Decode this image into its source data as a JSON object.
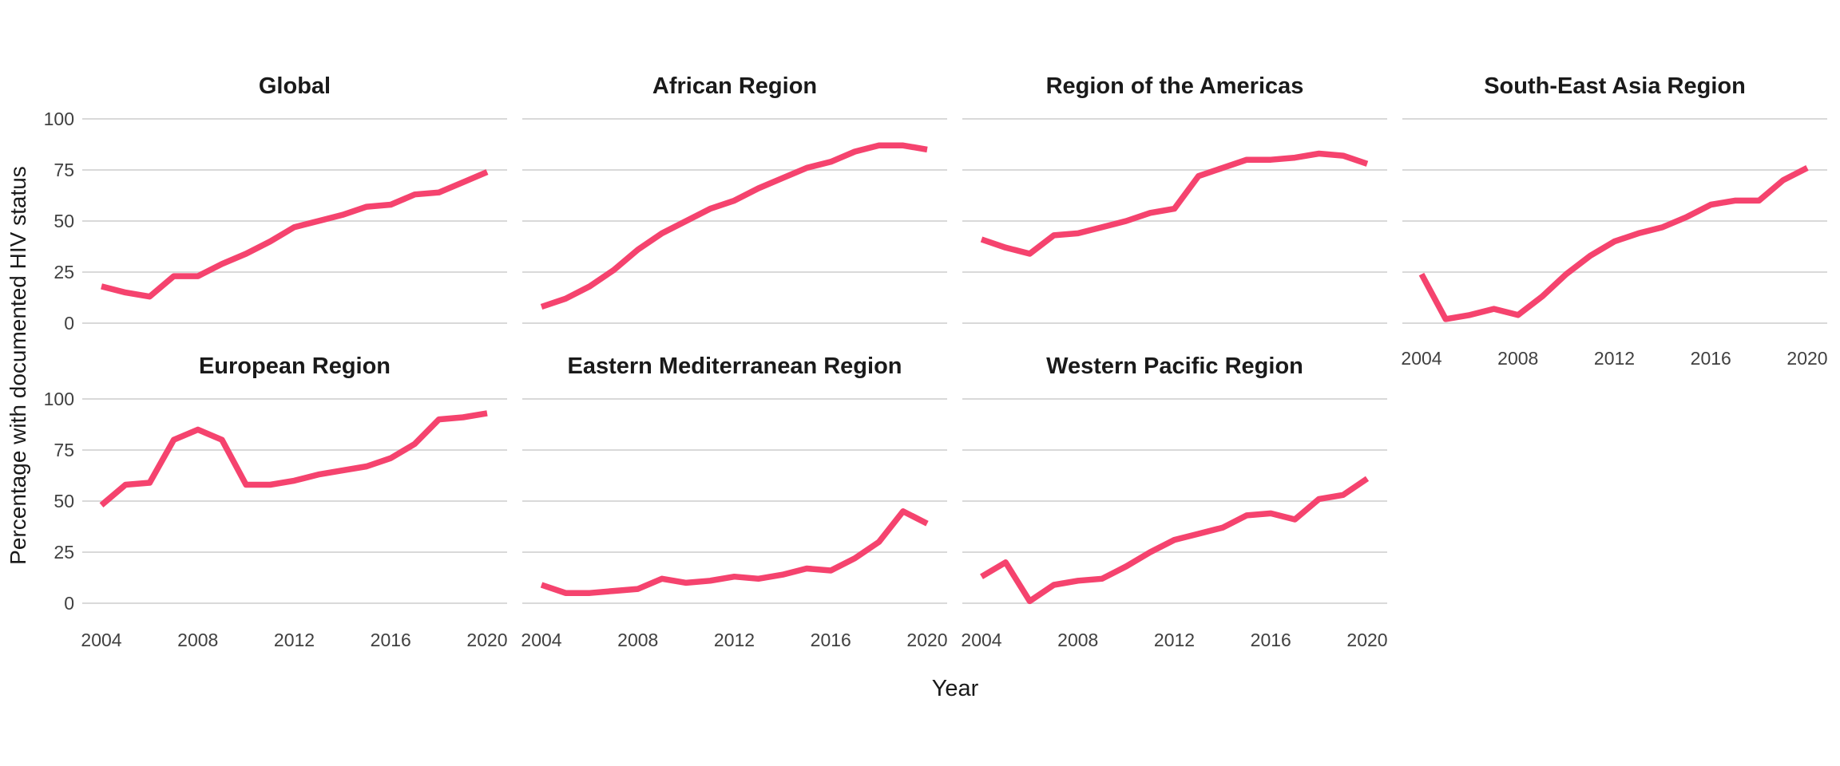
{
  "chart_data": {
    "type": "line",
    "title": "",
    "xlabel": "Year",
    "ylabel": "Percentage with documented HIV status",
    "x": [
      2004,
      2005,
      2006,
      2007,
      2008,
      2009,
      2010,
      2011,
      2012,
      2013,
      2014,
      2015,
      2016,
      2017,
      2018,
      2019,
      2020
    ],
    "xticks": [
      2004,
      2008,
      2012,
      2016,
      2020
    ],
    "yticks": [
      0,
      25,
      50,
      75,
      100
    ],
    "ylim": [
      0,
      100
    ],
    "grid": "horizontal-only",
    "legend": "none",
    "line_color": "#F5436E",
    "gridline_color": "#D9D9D9",
    "title_color": "#1a1a1a",
    "tick_color": "#404040",
    "series": [
      {
        "name": "Global",
        "values": [
          18,
          15,
          13,
          23,
          23,
          29,
          34,
          40,
          47,
          50,
          53,
          57,
          58,
          63,
          64,
          69,
          74
        ]
      },
      {
        "name": "African Region",
        "values": [
          8,
          12,
          18,
          26,
          36,
          44,
          50,
          56,
          60,
          66,
          71,
          76,
          79,
          84,
          87,
          87,
          85
        ]
      },
      {
        "name": "Region of the Americas",
        "values": [
          41,
          37,
          34,
          43,
          44,
          47,
          50,
          54,
          56,
          72,
          76,
          80,
          80,
          81,
          83,
          82,
          78
        ]
      },
      {
        "name": "South-East Asia Region",
        "values": [
          24,
          2,
          4,
          7,
          4,
          13,
          24,
          33,
          40,
          44,
          47,
          52,
          58,
          60,
          60,
          70,
          76
        ]
      },
      {
        "name": "European Region",
        "values": [
          48,
          58,
          59,
          80,
          85,
          80,
          58,
          58,
          60,
          63,
          65,
          67,
          71,
          78,
          90,
          91,
          93
        ]
      },
      {
        "name": "Eastern Mediterranean Region",
        "values": [
          9,
          5,
          5,
          6,
          7,
          12,
          10,
          11,
          13,
          12,
          14,
          17,
          16,
          22,
          30,
          45,
          39
        ]
      },
      {
        "name": "Western Pacific Region",
        "values": [
          13,
          20,
          1,
          9,
          11,
          12,
          18,
          25,
          31,
          34,
          37,
          43,
          44,
          41,
          51,
          53,
          61
        ]
      }
    ],
    "layout": {
      "rows": 2,
      "cols": 4
    }
  }
}
